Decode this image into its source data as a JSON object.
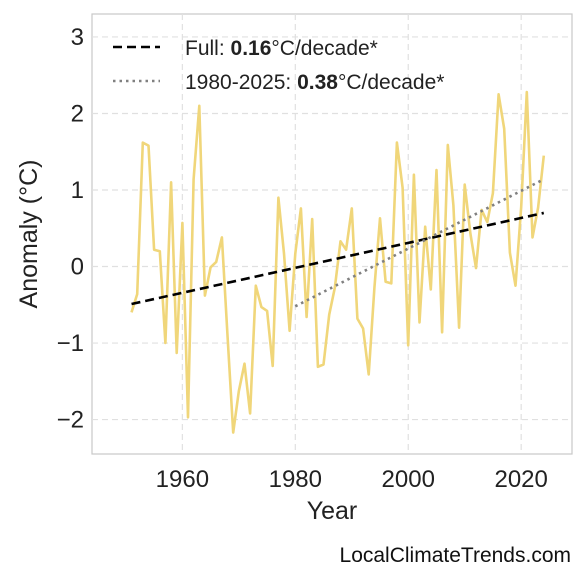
{
  "watermark": "LocalClimateTrends.com",
  "chart_data": {
    "type": "line",
    "title": "",
    "xlabel": "Year",
    "ylabel": "Anomaly (°C)",
    "xlim": [
      1944,
      2029
    ],
    "ylim": [
      -2.45,
      3.3
    ],
    "x_ticks": [
      1960,
      1980,
      2000,
      2020
    ],
    "y_ticks": [
      -2,
      -1,
      0,
      1,
      2,
      3
    ],
    "y_tick_labels": [
      "−2",
      "−1",
      "0",
      "1",
      "2",
      "3"
    ],
    "grid": true,
    "legend_position": "top-left",
    "colors": {
      "series": "#f0d67a",
      "full_trend": "#000000",
      "recent_trend": "#808080"
    },
    "series": [
      {
        "x": [
          1951,
          1952,
          1953,
          1954,
          1955,
          1956,
          1957,
          1958,
          1959,
          1960,
          1961,
          1962,
          1963,
          1964,
          1965,
          1966,
          1967,
          1968,
          1969,
          1970,
          1971,
          1972,
          1973,
          1974,
          1975,
          1976,
          1977,
          1978,
          1979,
          1980,
          1981,
          1982,
          1983,
          1984,
          1985,
          1986,
          1987,
          1988,
          1989,
          1990,
          1991,
          1992,
          1993,
          1994,
          1995,
          1996,
          1997,
          1998,
          1999,
          2000,
          2001,
          2002,
          2003,
          2004,
          2005,
          2006,
          2007,
          2008,
          2009,
          2010,
          2011,
          2012,
          2013,
          2014,
          2015,
          2016,
          2017,
          2018,
          2019,
          2020,
          2021,
          2022,
          2023,
          2024
        ],
        "values": [
          -0.6,
          -0.36,
          1.62,
          1.58,
          0.22,
          0.2,
          -1.0,
          1.1,
          -1.13,
          0.57,
          -1.97,
          1.14,
          2.1,
          -0.38,
          -0.01,
          0.06,
          0.38,
          -0.9,
          -2.17,
          -1.63,
          -1.27,
          -1.92,
          -0.25,
          -0.53,
          -0.58,
          -1.3,
          0.9,
          0.17,
          -0.84,
          0.17,
          0.76,
          -0.66,
          0.62,
          -1.31,
          -1.28,
          -0.63,
          -0.28,
          0.33,
          0.22,
          0.76,
          -0.68,
          -0.81,
          -1.41,
          -0.28,
          0.63,
          -0.2,
          -0.22,
          1.62,
          1.03,
          -1.03,
          1.2,
          -0.73,
          0.52,
          -0.3,
          1.26,
          -0.86,
          1.59,
          0.8,
          -0.8,
          1.07,
          0.43,
          -0.02,
          0.74,
          0.58,
          0.96,
          2.25,
          1.8,
          0.18,
          -0.25,
          0.78,
          2.28,
          0.38,
          0.77,
          1.45
        ]
      }
    ],
    "trends": [
      {
        "style": "dashed",
        "x": [
          1951,
          2024
        ],
        "y": [
          -0.49,
          0.7
        ],
        "label_prefix": "Full: ",
        "rate": "0.16",
        "label_suffix": "°C/decade*"
      },
      {
        "style": "dotted",
        "x": [
          1980,
          2024
        ],
        "y": [
          -0.52,
          1.14
        ],
        "label_prefix": "1980-2025: ",
        "rate": "0.38",
        "label_suffix": "°C/decade*"
      }
    ]
  }
}
